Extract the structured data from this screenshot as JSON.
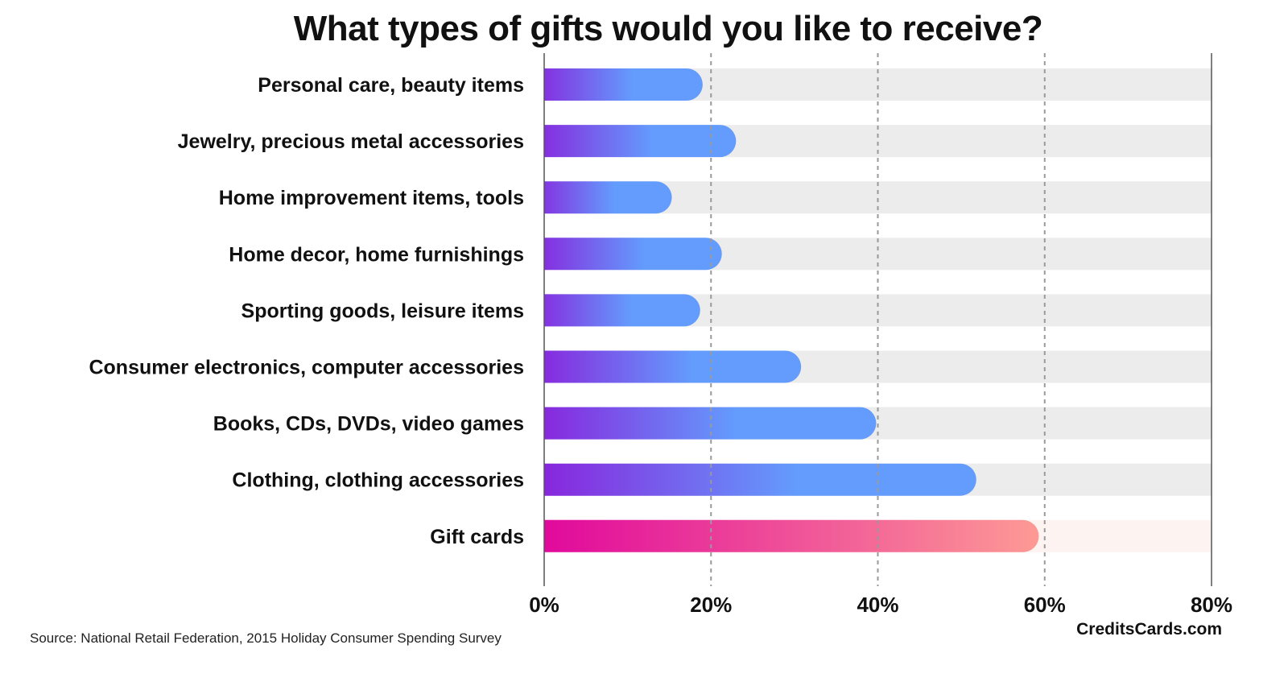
{
  "colors": {
    "track": "#ececec",
    "track_highlight": "#fdf3f1",
    "bar_start": "#8a1fdb",
    "bar_end": "#639cfd",
    "highlight_start": "#e0049c",
    "highlight_end": "#fd9a95",
    "grid": "#9a9a9a",
    "axis": "#555555"
  },
  "chart_data": {
    "type": "bar",
    "orientation": "horizontal",
    "title": "What types of gifts would you like to receive?",
    "categories": [
      "Personal care, beauty items",
      "Jewelry, precious metal accessories",
      "Home improvement items, tools",
      "Home decor, home furnishings",
      "Sporting goods, leisure items",
      "Consumer electronics, computer accessories",
      "Books, CDs, DVDs, video games",
      "Clothing, clothing accessories",
      "Gift cards"
    ],
    "values": [
      19,
      23,
      15.3,
      21.3,
      18.7,
      30.8,
      39.8,
      51.8,
      59.3
    ],
    "unit": "%",
    "highlighted_category": "Gift cards",
    "xlim": [
      0,
      80
    ],
    "xticks": [
      0,
      20,
      40,
      60,
      80
    ],
    "xtick_labels": [
      "0%",
      "20%",
      "40%",
      "60%",
      "80%"
    ],
    "grid": "vertical dashed",
    "legend": "none"
  },
  "footer": {
    "source": "Source: National Retail Federation, 2015 Holiday Consumer Spending Survey",
    "brand": "CreditsCards.com"
  }
}
